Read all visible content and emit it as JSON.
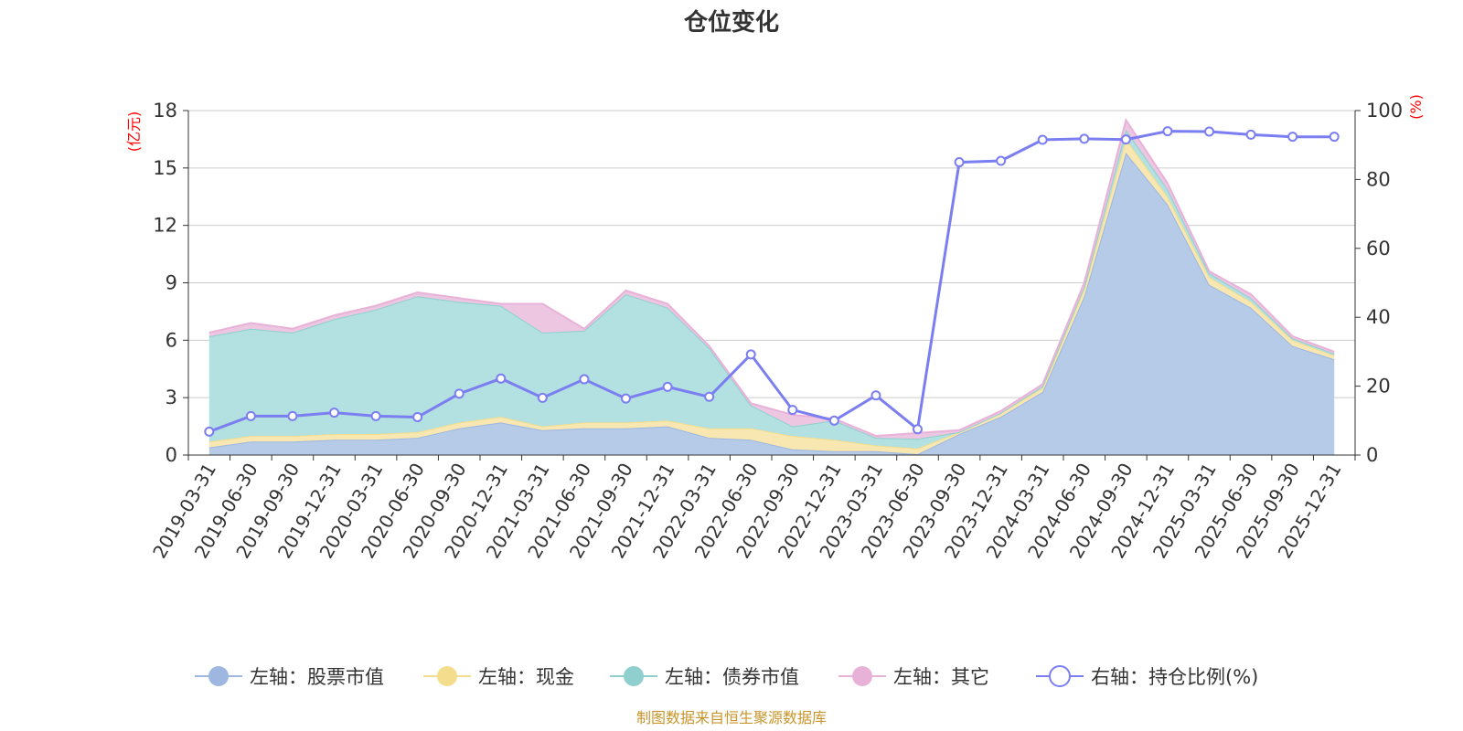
{
  "chart_data": {
    "type": "area",
    "title": "仓位变化",
    "left_unit": "(亿元)",
    "right_unit": "(%)",
    "categories": [
      "2019-03-31",
      "2019-06-30",
      "2019-09-30",
      "2019-12-31",
      "2020-03-31",
      "2020-06-30",
      "2020-09-30",
      "2020-12-31",
      "2021-03-31",
      "2021-06-30",
      "2021-09-30",
      "2021-12-31",
      "2022-03-31",
      "2022-06-30",
      "2022-09-30",
      "2022-12-31",
      "2023-03-31",
      "2023-06-30",
      "2023-09-30",
      "2023-12-31",
      "2024-03-31",
      "2024-06-30",
      "2024-09-30",
      "2024-12-31",
      "2025-03-31",
      "2025-06-30",
      "2025-09-30",
      "2025-12-31"
    ],
    "left_axis": {
      "min": 0,
      "max": 18,
      "ticks": [
        0,
        3,
        6,
        9,
        12,
        15,
        18
      ]
    },
    "right_axis": {
      "min": 0,
      "max": 100,
      "ticks": [
        0,
        20,
        40,
        60,
        80,
        100
      ]
    },
    "series": [
      {
        "name": "左轴：股票市值",
        "axis": "left",
        "color": "#9db7e0",
        "fill": "#b6cbe8",
        "values": [
          0.4,
          0.7,
          0.7,
          0.8,
          0.8,
          0.9,
          1.4,
          1.7,
          1.3,
          1.4,
          1.4,
          1.5,
          0.9,
          0.8,
          0.3,
          0.2,
          0.2,
          0.05,
          1.1,
          2.0,
          3.3,
          8.3,
          15.8,
          13.1,
          8.9,
          7.7,
          5.7,
          5.0
        ]
      },
      {
        "name": "左轴：现金",
        "axis": "left",
        "color": "#f5dd8e",
        "fill": "#f8e7b0",
        "values": [
          0.3,
          0.3,
          0.3,
          0.3,
          0.3,
          0.3,
          0.3,
          0.3,
          0.2,
          0.3,
          0.3,
          0.3,
          0.5,
          0.6,
          0.7,
          0.6,
          0.3,
          0.3,
          0.1,
          0.2,
          0.2,
          0.4,
          0.7,
          0.4,
          0.4,
          0.3,
          0.3,
          0.2
        ]
      },
      {
        "name": "左轴：债券市值",
        "axis": "left",
        "color": "#8fd0cf",
        "fill": "#b3e0e0",
        "values": [
          5.5,
          5.6,
          5.4,
          6.0,
          6.5,
          7.1,
          6.3,
          5.8,
          4.9,
          4.8,
          6.7,
          5.9,
          4.2,
          1.2,
          0.5,
          1.0,
          0.4,
          0.5,
          0.0,
          0.0,
          0.1,
          0.1,
          0.5,
          0.4,
          0.2,
          0.2,
          0.1,
          0.1
        ]
      },
      {
        "name": "左轴：其它",
        "axis": "left",
        "color": "#e8b2d8",
        "fill": "#edc6e2",
        "values": [
          0.2,
          0.3,
          0.2,
          0.2,
          0.2,
          0.2,
          0.2,
          0.1,
          1.5,
          0.1,
          0.2,
          0.2,
          0.1,
          0.1,
          0.6,
          0.1,
          0.1,
          0.3,
          0.1,
          0.1,
          0.1,
          0.2,
          0.5,
          0.3,
          0.1,
          0.2,
          0.1,
          0.1
        ]
      },
      {
        "name": "右轴：持仓比例(%)",
        "axis": "right",
        "color": "#7b7ef0",
        "values": [
          6.8,
          11.3,
          11.3,
          12.3,
          11.3,
          11.0,
          17.8,
          22.2,
          16.6,
          22.0,
          16.4,
          19.8,
          16.9,
          29.2,
          13.1,
          10.0,
          17.3,
          7.5,
          85.0,
          85.4,
          91.5,
          91.8,
          91.6,
          94.0,
          93.9,
          93.0,
          92.4,
          92.4
        ]
      }
    ],
    "legend_position": "bottom-center",
    "grid": true,
    "source": "制图数据来自恒生聚源数据库"
  }
}
